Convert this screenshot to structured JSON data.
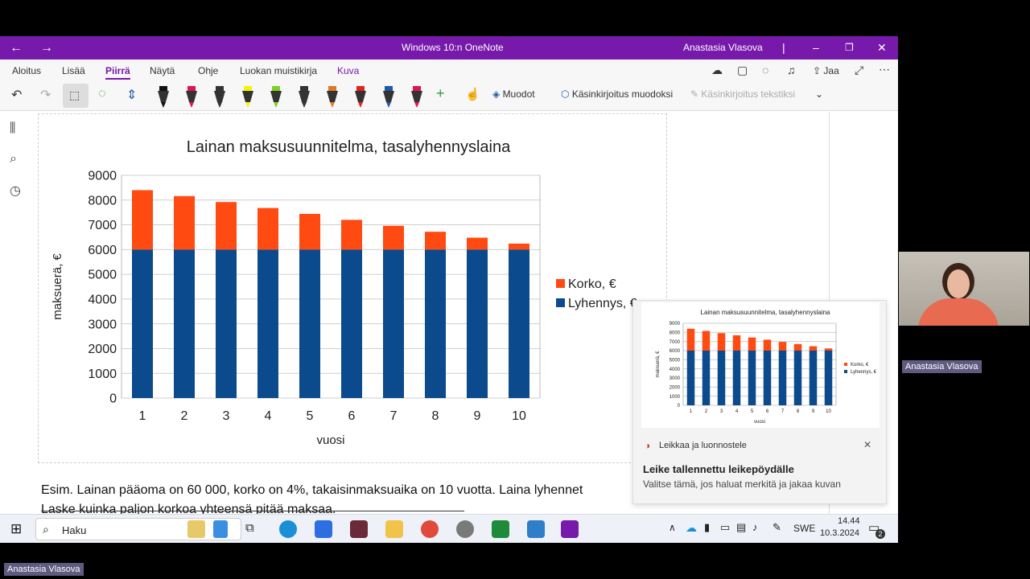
{
  "window": {
    "title": "Windows 10:n OneNote",
    "user": "Anastasia Vlasova"
  },
  "menu": [
    "Aloitus",
    "Lisää",
    "Piirrä",
    "Näytä",
    "Ohje",
    "Luokan muistikirja",
    "Kuva"
  ],
  "menu_active": "Piirrä",
  "share_label": "Jaa",
  "toolbar": {
    "shapes_label": "Muodot",
    "ink_to_shape_label": "Käsinkirjoitus muodoksi",
    "ink_to_text_label": "Käsinkirjoitus tekstiksi",
    "pen_colors": [
      "#111111",
      "#e0115f",
      "#333333",
      "#f5f500",
      "#7ed321",
      "#333333",
      "#e07a1f",
      "#e0251a",
      "#1e5aa8",
      "#e0115f"
    ]
  },
  "chart_data": {
    "type": "bar",
    "stacked": true,
    "title": "Lainan maksusuunnitelma, tasalyhennyslaina",
    "xlabel": "vuosi",
    "ylabel": "maksuerä, €",
    "categories": [
      "1",
      "2",
      "3",
      "4",
      "5",
      "6",
      "7",
      "8",
      "9",
      "10"
    ],
    "ylim": [
      0,
      9000
    ],
    "yticks": [
      "0",
      "1000",
      "2000",
      "3000",
      "4000",
      "5000",
      "6000",
      "7000",
      "8000",
      "9000"
    ],
    "series": [
      {
        "name": "Lyhennys, €",
        "color": "#0b4a8c",
        "values": [
          6000,
          6000,
          6000,
          6000,
          6000,
          6000,
          6000,
          6000,
          6000,
          6000
        ]
      },
      {
        "name": "Korko, €",
        "color": "#ff4a12",
        "values": [
          2400,
          2160,
          1920,
          1680,
          1440,
          1200,
          960,
          720,
          480,
          240
        ]
      }
    ],
    "legend_position": "right",
    "grid": true
  },
  "note_lines": [
    "Esim.  Lainan pääoma on 60 000, korko on 4%, takaisinmaksuaika on 10 vuotta. Laina lyhennet",
    "Laske kuinka paljon korkoa yhteensä pitää maksaa."
  ],
  "notification": {
    "app_name": "Leikkaa ja luonnostele",
    "title": "Leike tallennettu leikepöydälle",
    "body": "Valitse tämä, jos haluat merkitä ja jakaa kuvan"
  },
  "taskbar": {
    "search_label": "Haku",
    "language": "SWE",
    "time": "14.44",
    "date": "10.3.2024",
    "notification_count": "2"
  },
  "video": {
    "participant_name": "Anastasia Vlasova"
  },
  "presenter_label": "Anastasia Vlasova"
}
